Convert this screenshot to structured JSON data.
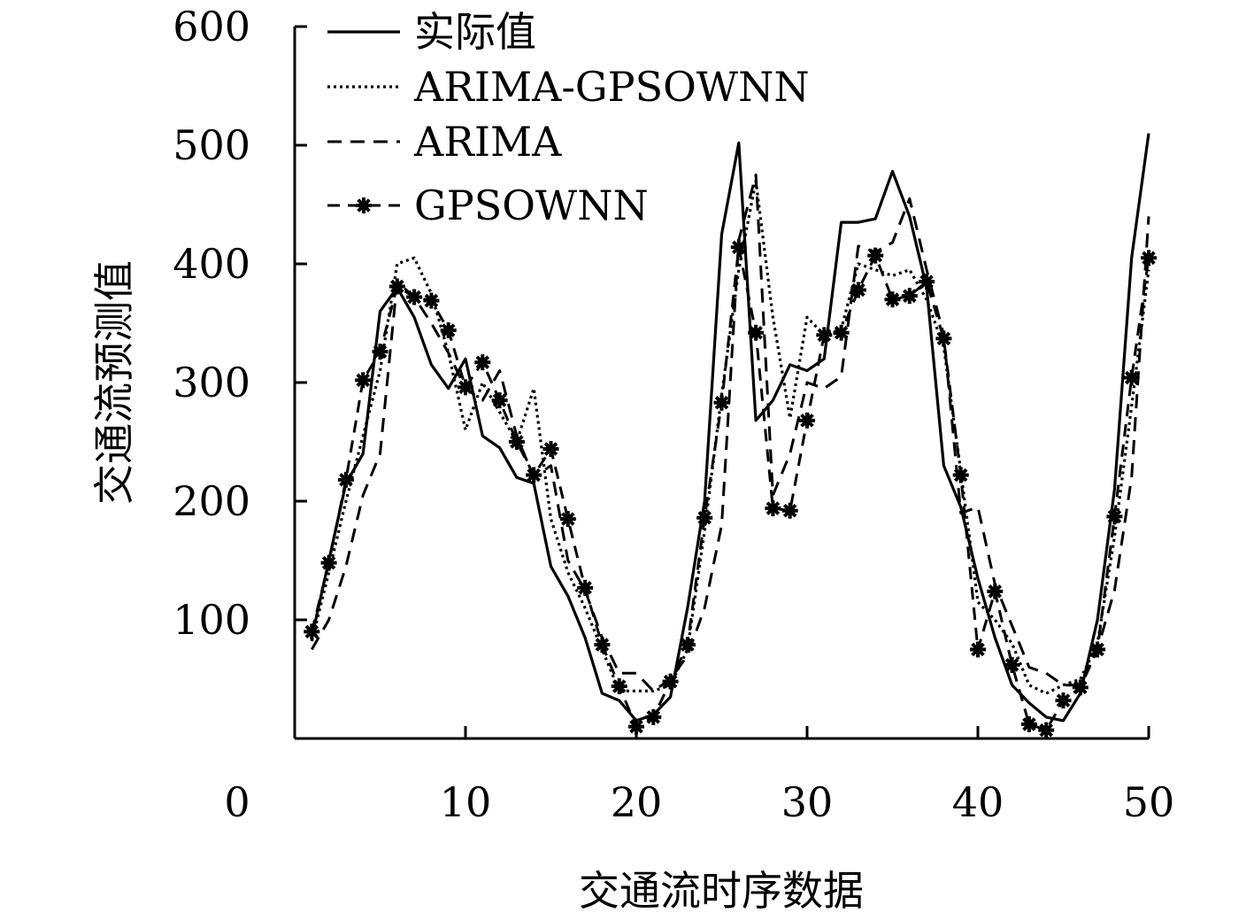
{
  "chart_data": {
    "type": "line",
    "title": "",
    "xlabel": "交通流时序数据",
    "ylabel": "交通流预测值",
    "xlim": [
      0,
      50
    ],
    "ylim": [
      0,
      600
    ],
    "x_ticks": [
      "0",
      "10",
      "20",
      "30",
      "40",
      "50"
    ],
    "y_ticks": [
      "100",
      "200",
      "300",
      "400",
      "500",
      "600"
    ],
    "grid": false,
    "legend_position": "top-left",
    "x": [
      1,
      2,
      3,
      4,
      5,
      6,
      7,
      8,
      9,
      10,
      11,
      12,
      13,
      14,
      15,
      16,
      17,
      18,
      19,
      20,
      21,
      22,
      23,
      24,
      25,
      26,
      27,
      28,
      29,
      30,
      31,
      32,
      33,
      34,
      35,
      36,
      37,
      38,
      39,
      40,
      41,
      42,
      43,
      44,
      45,
      46,
      47,
      48,
      49,
      50
    ],
    "series": [
      {
        "name": "实际值",
        "style": "solid",
        "values": [
          85,
          150,
          215,
          240,
          360,
          380,
          355,
          315,
          295,
          320,
          255,
          245,
          220,
          215,
          145,
          120,
          85,
          38,
          32,
          15,
          20,
          35,
          110,
          200,
          425,
          502,
          268,
          285,
          315,
          310,
          320,
          435,
          435,
          438,
          478,
          440,
          380,
          230,
          195,
          135,
          85,
          45,
          30,
          18,
          15,
          38,
          100,
          210,
          405,
          510
        ]
      },
      {
        "name": "ARIMA-GPSOWNN",
        "style": "dotted",
        "values": [
          82,
          140,
          200,
          255,
          310,
          400,
          405,
          375,
          325,
          260,
          300,
          275,
          250,
          295,
          185,
          140,
          110,
          75,
          40,
          40,
          40,
          45,
          75,
          175,
          290,
          395,
          470,
          355,
          270,
          355,
          340,
          345,
          400,
          395,
          390,
          395,
          370,
          330,
          225,
          115,
          100,
          80,
          45,
          38,
          45,
          50,
          80,
          170,
          280,
          395
        ]
      },
      {
        "name": "ARIMA",
        "style": "dashed",
        "values": [
          75,
          100,
          145,
          205,
          240,
          385,
          372,
          350,
          325,
          295,
          285,
          310,
          255,
          220,
          230,
          150,
          125,
          85,
          55,
          55,
          40,
          50,
          70,
          110,
          180,
          420,
          475,
          205,
          240,
          300,
          295,
          305,
          415,
          410,
          418,
          455,
          395,
          340,
          190,
          195,
          130,
          95,
          60,
          55,
          45,
          45,
          75,
          125,
          220,
          440
        ]
      },
      {
        "name": "GPSOWNN",
        "style": "dash-star",
        "values": [
          90,
          148,
          218,
          302,
          326,
          381,
          372,
          369,
          344,
          296,
          317,
          285,
          250,
          222,
          244,
          185,
          127,
          79,
          44,
          10,
          18,
          48,
          79,
          186,
          283,
          414,
          342,
          194,
          192,
          268,
          340,
          342,
          378,
          407,
          370,
          373,
          385,
          337,
          222,
          75,
          124,
          62,
          12,
          7,
          32,
          43,
          75,
          187,
          304,
          405
        ]
      }
    ]
  }
}
